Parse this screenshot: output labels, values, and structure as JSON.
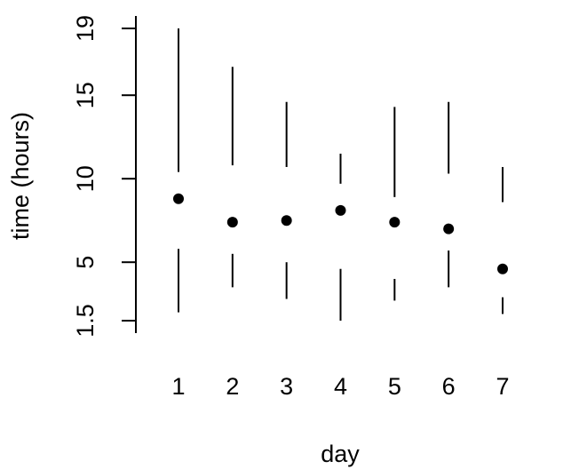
{
  "chart_data": {
    "type": "scatter",
    "title": "",
    "xlabel": "day",
    "ylabel": "time (hours)",
    "x_ticks": [
      "1",
      "2",
      "3",
      "4",
      "5",
      "6",
      "7"
    ],
    "y_ticks": [
      "1.5",
      "5",
      "10",
      "15",
      "19"
    ],
    "y_tick_values": [
      1.5,
      5,
      10,
      15,
      19
    ],
    "ylim": [
      1.5,
      19
    ],
    "grid": false,
    "legend": "none",
    "series": [
      {
        "x": [
          1,
          2,
          3,
          4,
          5,
          6,
          7
        ],
        "y": [
          8.8,
          7.4,
          7.5,
          8.1,
          7.4,
          7.0,
          4.6
        ],
        "upper": [
          [
            10.4,
            19.0
          ],
          [
            10.8,
            16.7
          ],
          [
            10.7,
            14.6
          ],
          [
            9.7,
            11.5
          ],
          [
            8.9,
            14.3
          ],
          [
            10.3,
            14.6
          ],
          [
            8.6,
            10.7
          ]
        ],
        "lower": [
          [
            2.0,
            5.8
          ],
          [
            3.5,
            5.5
          ],
          [
            2.8,
            5.0
          ],
          [
            1.5,
            4.6
          ],
          [
            2.7,
            4.0
          ],
          [
            3.5,
            5.7
          ],
          [
            1.9,
            2.9
          ]
        ]
      }
    ],
    "colors": {
      "point": "#000000",
      "line": "#000000"
    }
  }
}
